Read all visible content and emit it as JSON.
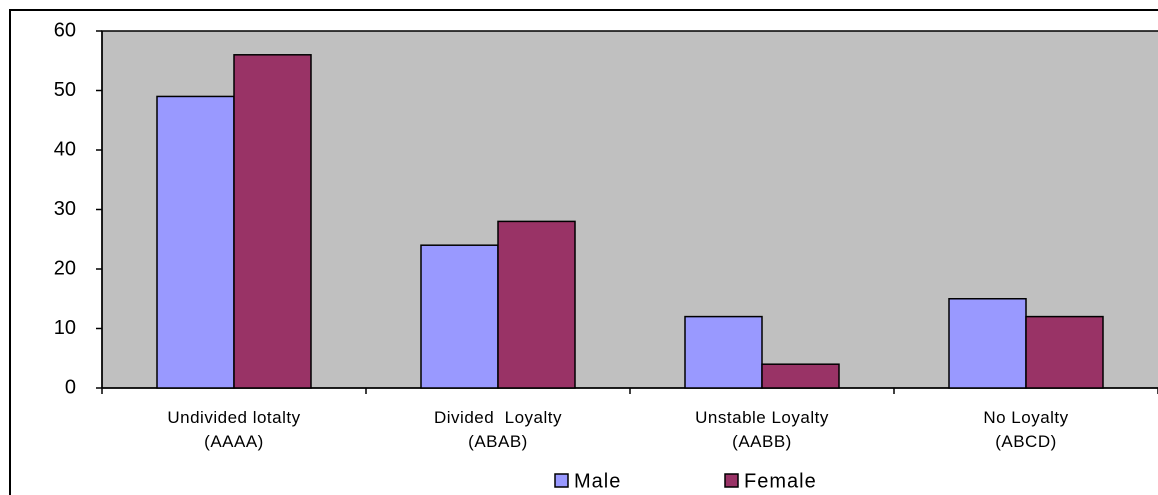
{
  "chart_data": {
    "type": "bar",
    "categories": [
      "Undivided lotalty (AAAA)",
      "Divided  Loyalty (ABAB)",
      "Unstable Loyalty (AABB)",
      "No Loyalty (ABCD)"
    ],
    "series": [
      {
        "name": "Male",
        "color": "#9999ff",
        "values": [
          49,
          24,
          12,
          15
        ]
      },
      {
        "name": "Female",
        "color": "#993366",
        "values": [
          56,
          28,
          4,
          12
        ]
      }
    ],
    "ylim": [
      0,
      60
    ],
    "yticks": [
      0,
      10,
      20,
      30,
      40,
      50,
      60
    ],
    "plot_background": "#c0c0c0"
  }
}
